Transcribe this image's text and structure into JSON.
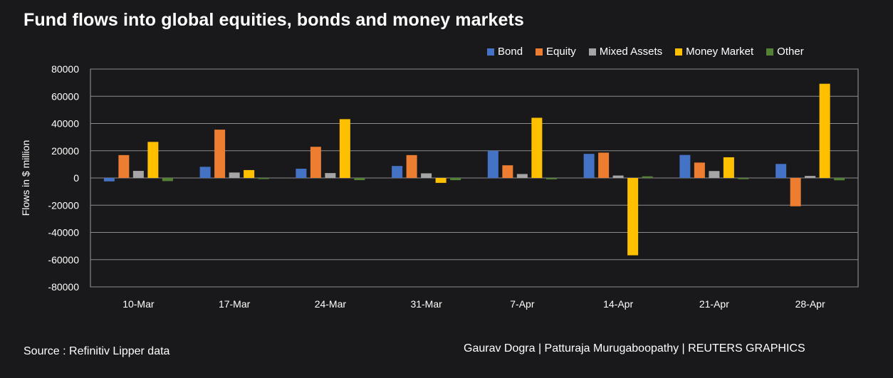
{
  "title": "Fund flows into global equities, bonds and money markets",
  "source": "Source : Refinitiv Lipper data",
  "credits": "Gaurav Dogra | Patturaja Murugaboopathy | REUTERS GRAPHICS",
  "chart_data": {
    "type": "bar",
    "ylabel": "Flows in $ million",
    "xlabel": "",
    "ylim": [
      -80000,
      80000
    ],
    "yticks": [
      80000,
      60000,
      40000,
      20000,
      0,
      -20000,
      -40000,
      -60000,
      -80000
    ],
    "grid": true,
    "legend_position": "top-right",
    "categories": [
      "10-Mar",
      "17-Mar",
      "24-Mar",
      "31-Mar",
      "7-Apr",
      "14-Apr",
      "21-Apr",
      "28-Apr"
    ],
    "series": [
      {
        "name": "Bond",
        "color": "#4472c4",
        "values": [
          -2500,
          8200,
          6800,
          8800,
          20000,
          17700,
          16900,
          10300
        ]
      },
      {
        "name": "Equity",
        "color": "#ed7d31",
        "values": [
          16800,
          35500,
          22900,
          16800,
          9300,
          18600,
          11300,
          -20800
        ]
      },
      {
        "name": "Mixed Assets",
        "color": "#a5a5a5",
        "values": [
          5200,
          4000,
          3600,
          3400,
          2900,
          1800,
          5100,
          1500
        ]
      },
      {
        "name": "Money Market",
        "color": "#ffc000",
        "values": [
          26500,
          5800,
          43200,
          -3600,
          44200,
          -56800,
          15200,
          69200
        ]
      },
      {
        "name": "Other",
        "color": "#548235",
        "values": [
          -2300,
          -800,
          -1600,
          -1600,
          -1000,
          1200,
          -900,
          -1700
        ]
      }
    ]
  }
}
